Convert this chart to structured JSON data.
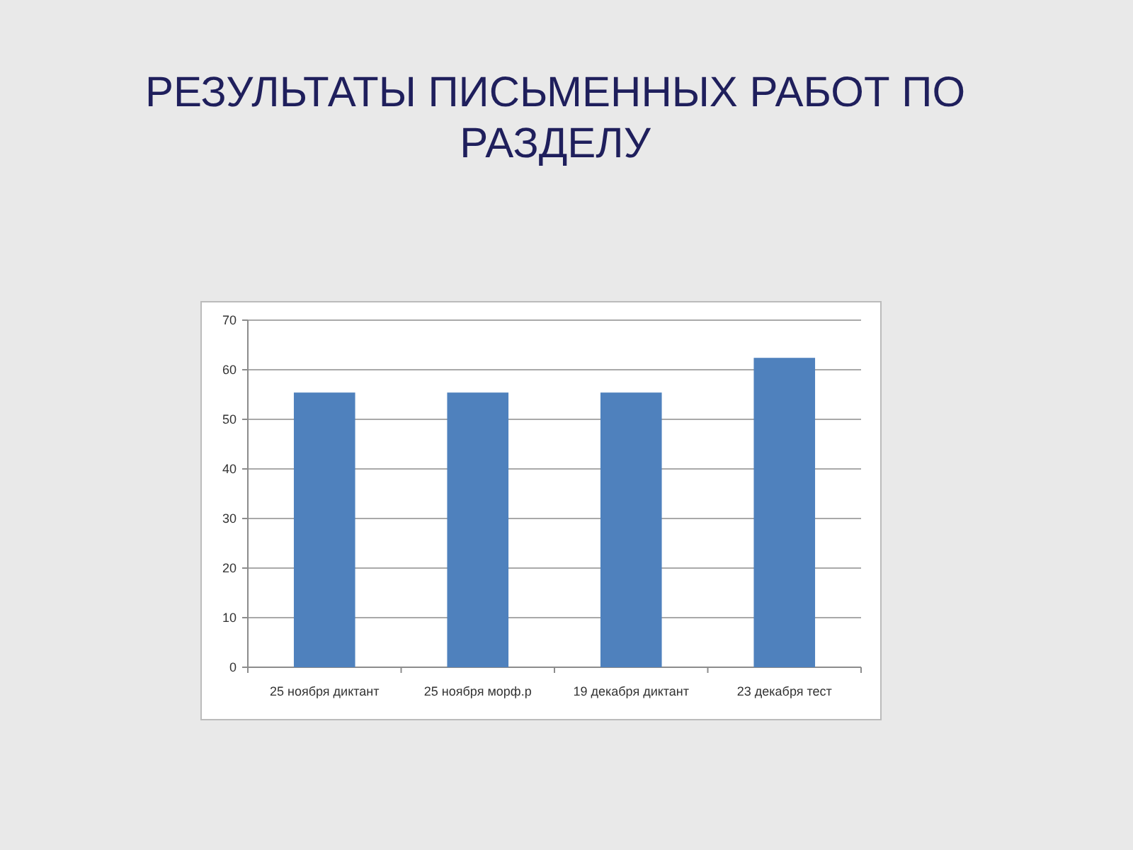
{
  "chart_data": {
    "type": "bar",
    "title": "РЕЗУЛЬТАТЫ ПИСЬМЕННЫХ РАБОТ ПО РАЗДЕЛУ",
    "categories": [
      "25 ноября диктант",
      "25 ноября морф.р",
      "19 декабря диктант",
      "23 декабря тест"
    ],
    "values": [
      55.4,
      55.4,
      55.4,
      62.4
    ],
    "color": "#4f81bd",
    "ylim": [
      0,
      70
    ],
    "yticks": [
      0,
      10,
      20,
      30,
      40,
      50,
      60,
      70
    ],
    "grid": "y"
  }
}
